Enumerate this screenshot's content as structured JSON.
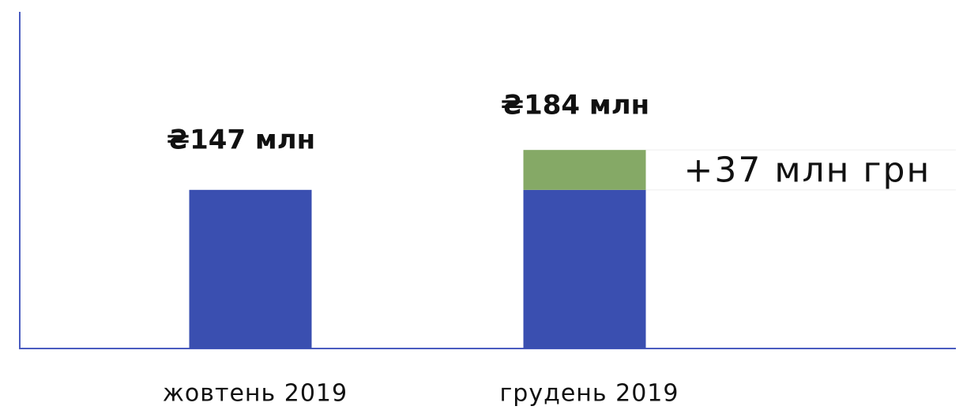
{
  "chart_data": {
    "type": "stacked_bar",
    "categories": [
      "жовтень 2019",
      "грудень 2019"
    ],
    "series": [
      {
        "color": "#3a4fb0",
        "values": [
          147,
          147
        ],
        "value_labels": [
          "₴147 млн",
          null
        ]
      },
      {
        "color": "#85a966",
        "values": [
          null,
          37
        ],
        "value_labels": [
          null,
          "+37 млн грн"
        ]
      }
    ],
    "totals": {
      "values": [
        null,
        184
      ],
      "value_labels": [
        null,
        "₴184 млн"
      ]
    },
    "ylim": [
      0,
      312
    ]
  }
}
